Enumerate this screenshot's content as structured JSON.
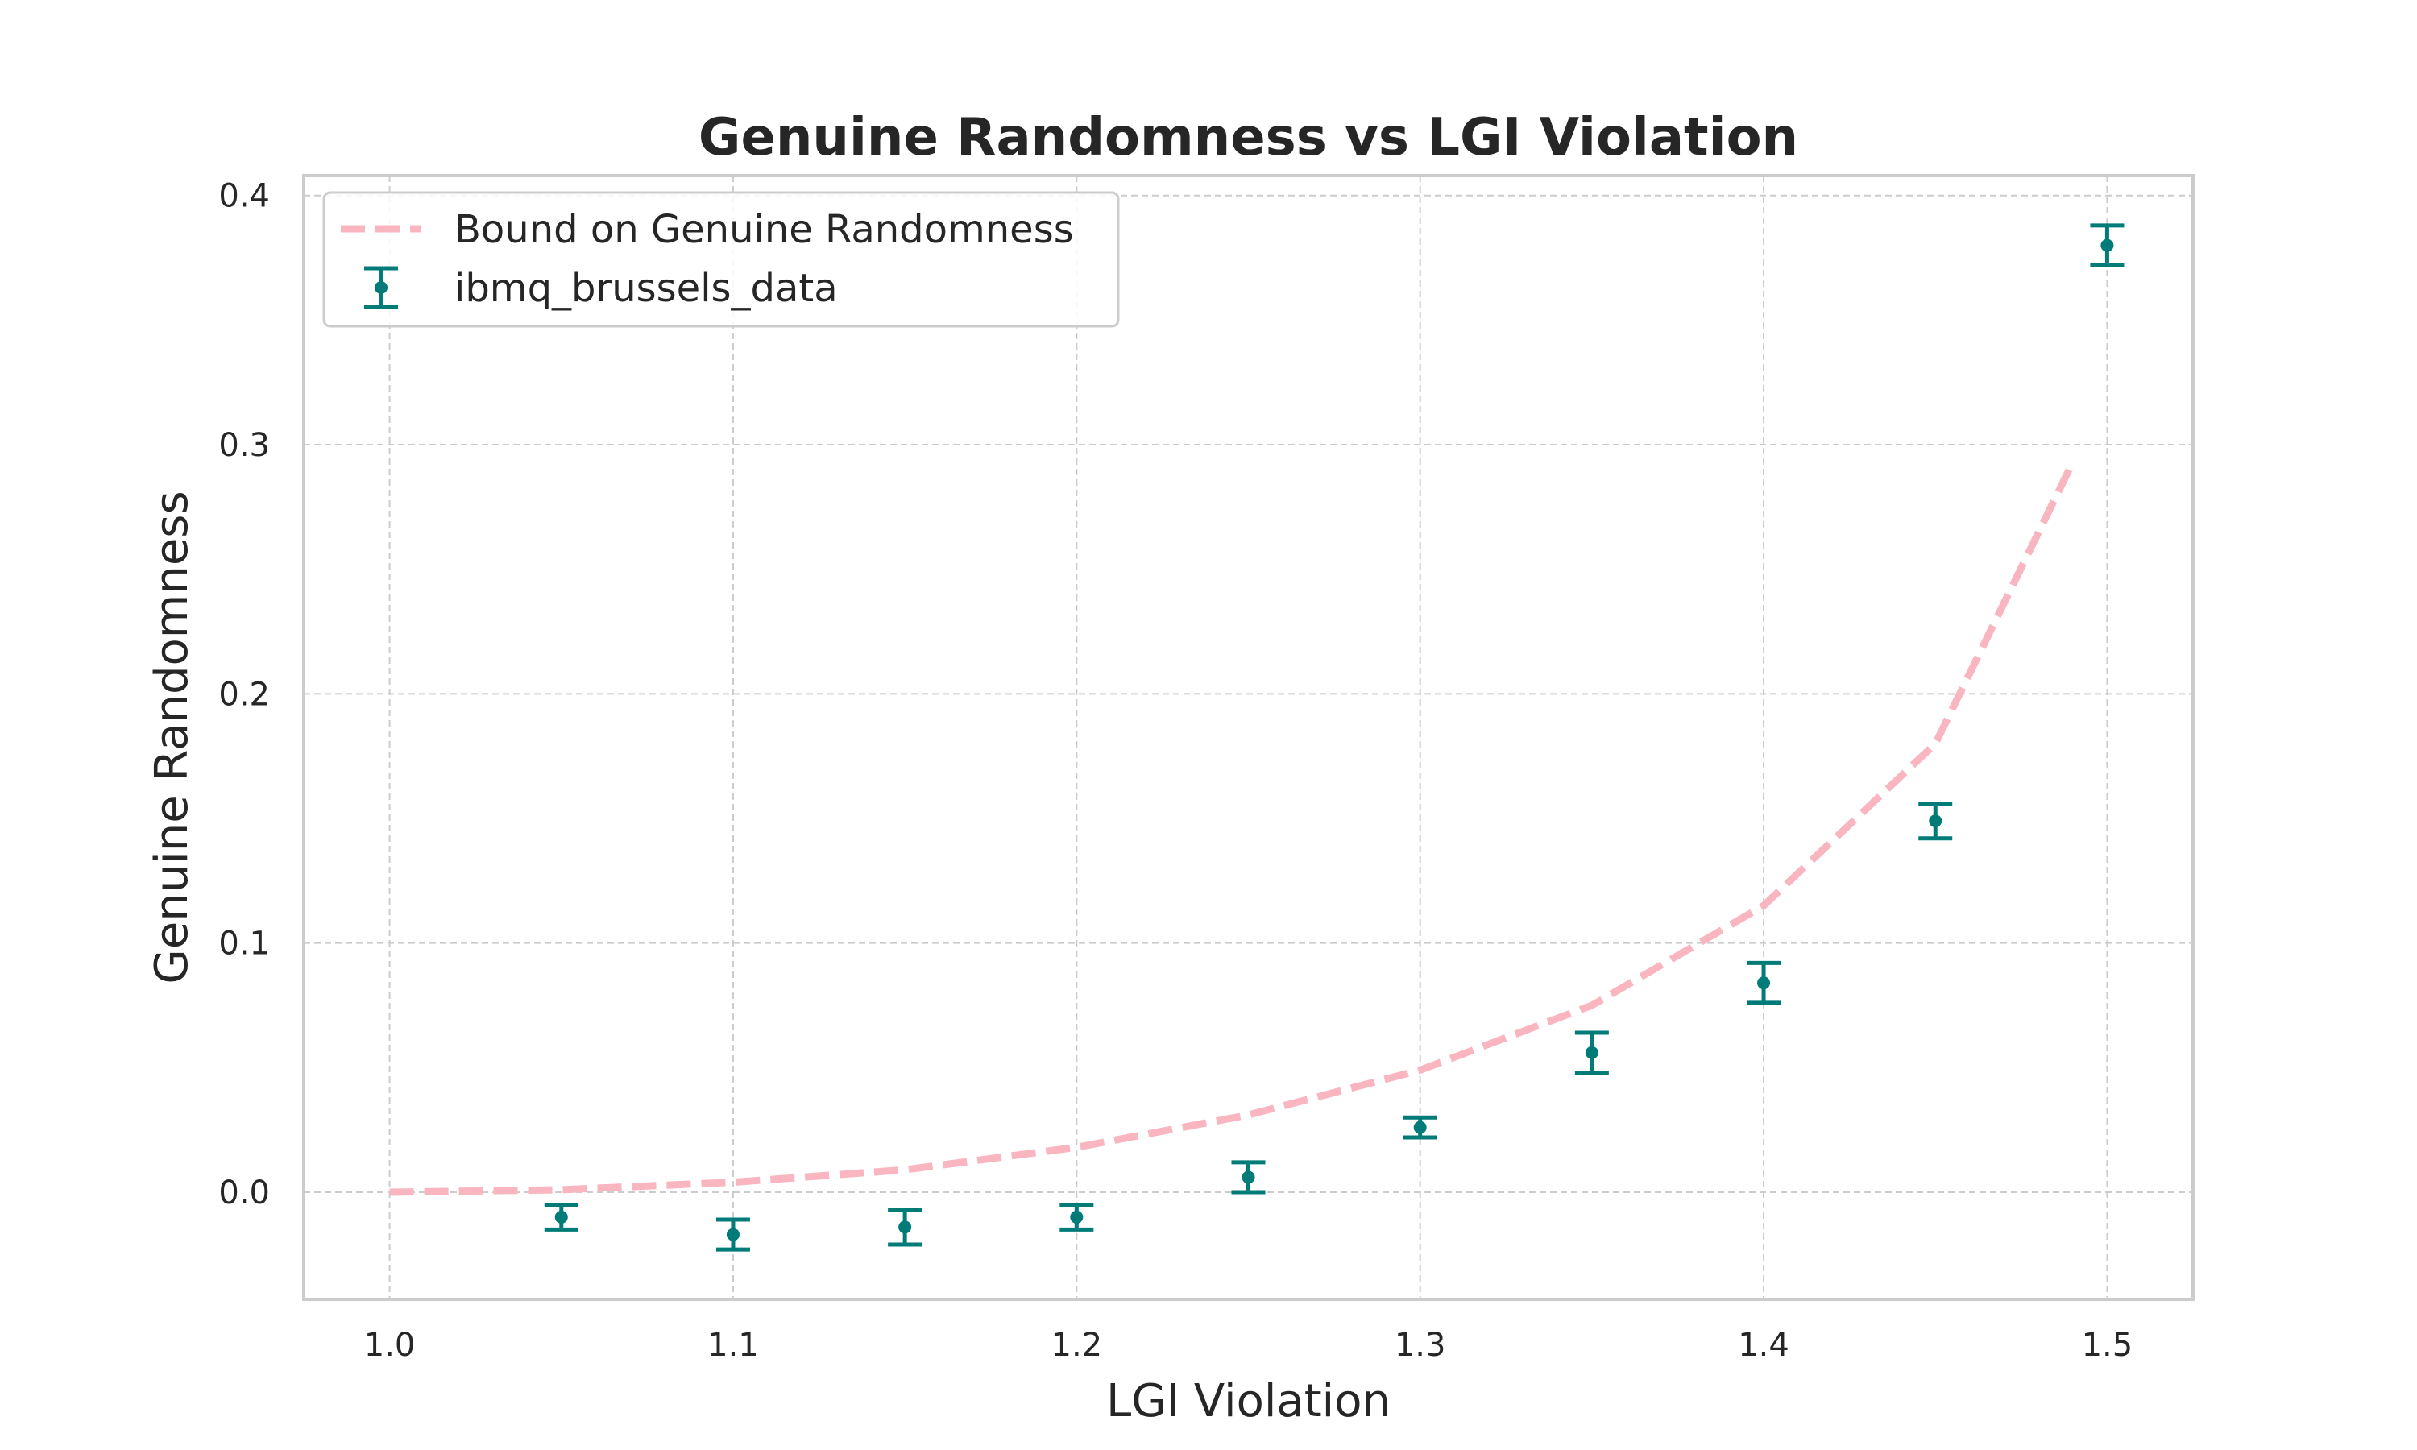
{
  "chart_data": {
    "type": "line",
    "title": "Genuine Randomness vs LGI Violation",
    "xlabel": "LGI Violation",
    "ylabel": "Genuine Randomness",
    "xlim": [
      0.975,
      1.525
    ],
    "ylim": [
      -0.043,
      0.408
    ],
    "x_ticks": [
      1.0,
      1.1,
      1.2,
      1.3,
      1.4,
      1.5
    ],
    "y_ticks": [
      0.0,
      0.1,
      0.2,
      0.3,
      0.4
    ],
    "x_tick_labels": [
      "1.0",
      "1.1",
      "1.2",
      "1.3",
      "1.4",
      "1.5"
    ],
    "y_tick_labels": [
      "0.0",
      "0.1",
      "0.2",
      "0.3",
      "0.4"
    ],
    "grid": true,
    "legend_location": "upper-left",
    "series": [
      {
        "name": "Bound on Genuine Randomness",
        "kind": "line",
        "style": "dashed",
        "color": "#f9b6c1",
        "x": [
          1.0,
          1.05,
          1.1,
          1.15,
          1.2,
          1.25,
          1.3,
          1.35,
          1.4,
          1.45,
          1.49
        ],
        "y": [
          0.0,
          0.001,
          0.004,
          0.009,
          0.018,
          0.031,
          0.049,
          0.075,
          0.115,
          0.18,
          0.293
        ]
      },
      {
        "name": "ibmq_brussels_data",
        "kind": "errorbar",
        "color": "#007b78",
        "x": [
          1.05,
          1.1,
          1.15,
          1.2,
          1.25,
          1.3,
          1.35,
          1.4,
          1.45,
          1.5
        ],
        "y": [
          -0.01,
          -0.017,
          -0.014,
          -0.01,
          0.006,
          0.026,
          0.056,
          0.084,
          0.149,
          0.38
        ],
        "yerr": [
          0.005,
          0.006,
          0.007,
          0.005,
          0.006,
          0.004,
          0.008,
          0.008,
          0.007,
          0.008
        ]
      }
    ]
  }
}
